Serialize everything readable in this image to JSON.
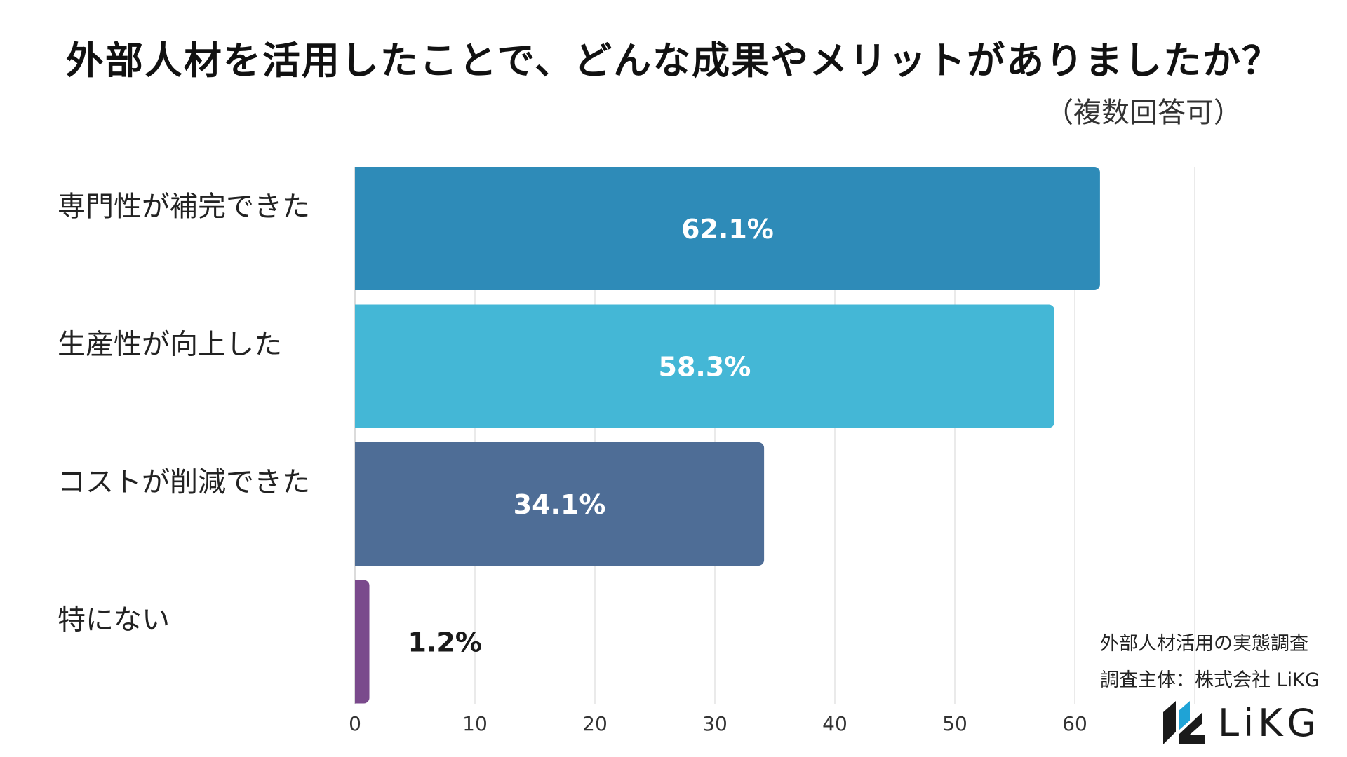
{
  "title": "外部人材を活用したことで、どんな成果やメリットがありましたか？",
  "subtitle": "（複数回答可）",
  "source": {
    "line1": "外部人材活用の実態調査",
    "line2": "調査主体：株式会社 LiKG"
  },
  "logo": {
    "text": "LiKG"
  },
  "chart_data": {
    "type": "bar",
    "orientation": "horizontal",
    "title": "外部人材を活用したことで、どんな成果やメリットがありましたか？",
    "categories": [
      "専門性が補完できた",
      "生産性が向上した",
      "コストが削減できた",
      "特にない"
    ],
    "values": [
      62.1,
      58.3,
      34.1,
      1.2
    ],
    "data_labels": [
      "62.1%",
      "58.3%",
      "34.1%",
      "1.2%"
    ],
    "colors": [
      "#2e8bb8",
      "#44b7d6",
      "#4e6d96",
      "#7a4a8c"
    ],
    "xticks": [
      0,
      10,
      20,
      30,
      40,
      50,
      60
    ],
    "xlim": [
      0,
      70
    ],
    "xlabel": "",
    "ylabel": "",
    "grid": true
  }
}
